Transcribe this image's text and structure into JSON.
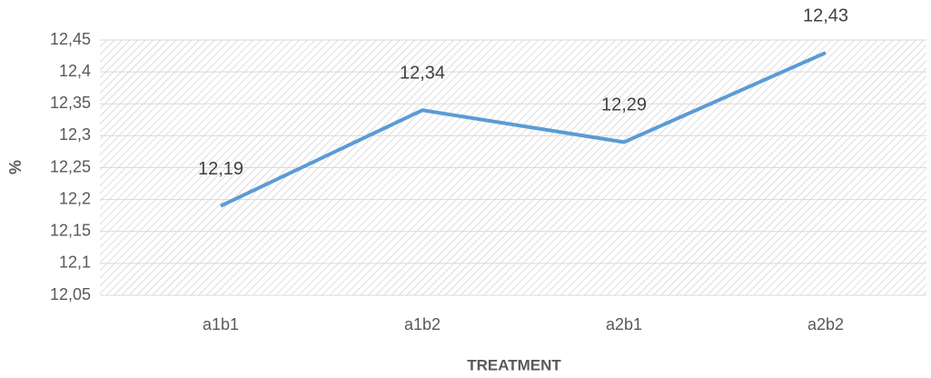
{
  "chart_data": {
    "type": "line",
    "x_label": "TREATMENT",
    "y_label": "%",
    "categories": [
      "a1b1",
      "a1b2",
      "a2b1",
      "a2b2"
    ],
    "series": [
      {
        "name": "%",
        "color": "#5b9bd5",
        "values": [
          12.19,
          12.34,
          12.29,
          12.43
        ],
        "value_labels": [
          "12,19",
          "12,34",
          "12,29",
          "12,43"
        ]
      }
    ],
    "ylim": [
      12.05,
      12.45
    ],
    "yticks": [
      {
        "value": 12.05,
        "label": "12,05"
      },
      {
        "value": 12.1,
        "label": "12,1"
      },
      {
        "value": 12.15,
        "label": "12,15"
      },
      {
        "value": 12.2,
        "label": "12,2"
      },
      {
        "value": 12.25,
        "label": "12,25"
      },
      {
        "value": 12.3,
        "label": "12,3"
      },
      {
        "value": 12.35,
        "label": "12,35"
      },
      {
        "value": 12.4,
        "label": "12,4"
      },
      {
        "value": 12.45,
        "label": "12,45"
      }
    ],
    "grid": true
  }
}
